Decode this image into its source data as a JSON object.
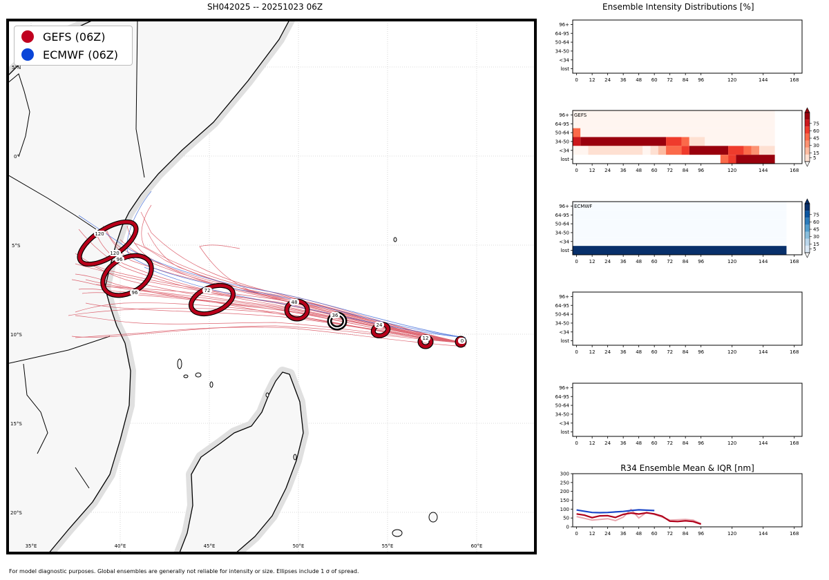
{
  "map": {
    "title": "SH042025 -- 20251023 06Z",
    "legend": [
      {
        "label": "GEFS (06Z)",
        "color": "#c0001f"
      },
      {
        "label": "ECMWF (06Z)",
        "color": "#0a45d8"
      }
    ],
    "lat_labels": [
      "5°N",
      "0°",
      "5°S",
      "10°S",
      "15°S",
      "20°S"
    ],
    "lon_labels": [
      "35°E",
      "40°E",
      "45°E",
      "50°E",
      "55°E",
      "60°E"
    ],
    "forecast_hours": [
      "0",
      "12",
      "24",
      "36",
      "48",
      "72",
      "96",
      "96",
      "120",
      "120"
    ],
    "footer": "For model diagnostic purposes. Global ensembles are generally not reliable for intensity or size. Ellipses include 1 σ of spread."
  },
  "chart_data": [
    {
      "type": "heatmap",
      "title": "Ensemble Intensity Distributions [%]",
      "panel_label": "",
      "rows": [
        "96+",
        "64-95",
        "50-64",
        "34-50",
        "<34",
        "lost"
      ],
      "x_ticks": [
        0,
        12,
        24,
        36,
        48,
        60,
        72,
        84,
        96,
        120,
        144,
        168
      ],
      "xlim": [
        -3,
        174
      ],
      "cells": []
    },
    {
      "type": "heatmap",
      "title": "",
      "panel_label": "GEFS",
      "rows": [
        "96+",
        "64-95",
        "50-64",
        "34-50",
        "<34",
        "lost"
      ],
      "x_ticks": [
        0,
        12,
        24,
        36,
        48,
        60,
        72,
        84,
        96,
        120,
        144,
        168
      ],
      "xlim": [
        -3,
        174
      ],
      "colorbar": {
        "colors": [
          "#fee0d2",
          "#fcbba1",
          "#fc9272",
          "#fb6a4a",
          "#ef3b2c",
          "#cb181d",
          "#99000d"
        ],
        "ticks": [
          5,
          15,
          30,
          45,
          60,
          75
        ]
      },
      "cells": [
        {
          "row": "96+",
          "x0": -3,
          "x1": 153,
          "value": 2
        },
        {
          "row": "64-95",
          "x0": -3,
          "x1": 153,
          "value": 2
        },
        {
          "row": "50-64",
          "x0": -3,
          "x1": 3,
          "value": 45
        },
        {
          "row": "50-64",
          "x0": 3,
          "x1": 153,
          "value": 2
        },
        {
          "row": "34-50",
          "x0": -3,
          "x1": 3,
          "value": 75
        },
        {
          "row": "34-50",
          "x0": 3,
          "x1": 69,
          "value": 95
        },
        {
          "row": "34-50",
          "x0": 69,
          "x1": 81,
          "value": 65
        },
        {
          "row": "34-50",
          "x0": 81,
          "x1": 87,
          "value": 45
        },
        {
          "row": "34-50",
          "x0": 87,
          "x1": 99,
          "value": 12
        },
        {
          "row": "34-50",
          "x0": 99,
          "x1": 153,
          "value": 2
        },
        {
          "row": "<34",
          "x0": -3,
          "x1": 9,
          "value": 2
        },
        {
          "row": "<34",
          "x0": 9,
          "x1": 51,
          "value": 12
        },
        {
          "row": "<34",
          "x0": 51,
          "x1": 57,
          "value": 2
        },
        {
          "row": "<34",
          "x0": 57,
          "x1": 63,
          "value": 12
        },
        {
          "row": "<34",
          "x0": 63,
          "x1": 69,
          "value": 20
        },
        {
          "row": "<34",
          "x0": 69,
          "x1": 81,
          "value": 45
        },
        {
          "row": "<34",
          "x0": 81,
          "x1": 87,
          "value": 65
        },
        {
          "row": "<34",
          "x0": 87,
          "x1": 117,
          "value": 95
        },
        {
          "row": "<34",
          "x0": 117,
          "x1": 129,
          "value": 65
        },
        {
          "row": "<34",
          "x0": 129,
          "x1": 135,
          "value": 45
        },
        {
          "row": "<34",
          "x0": 135,
          "x1": 141,
          "value": 30
        },
        {
          "row": "<34",
          "x0": 141,
          "x1": 153,
          "value": 12
        },
        {
          "row": "lost",
          "x0": 111,
          "x1": 117,
          "value": 45
        },
        {
          "row": "lost",
          "x0": 117,
          "x1": 123,
          "value": 65
        },
        {
          "row": "lost",
          "x0": 123,
          "x1": 153,
          "value": 95
        }
      ]
    },
    {
      "type": "heatmap",
      "title": "",
      "panel_label": "ECMWF",
      "rows": [
        "96+",
        "64-95",
        "50-64",
        "34-50",
        "<34",
        "lost"
      ],
      "x_ticks": [
        0,
        12,
        24,
        36,
        48,
        60,
        72,
        84,
        96,
        120,
        144,
        168
      ],
      "xlim": [
        -3,
        174
      ],
      "colorbar": {
        "colors": [
          "#dbe9f6",
          "#bad6eb",
          "#89bedc",
          "#539ecd",
          "#2b7bba",
          "#0b559f",
          "#08306b"
        ],
        "ticks": [
          5,
          15,
          30,
          45,
          60,
          75
        ]
      },
      "cells": [
        {
          "row": "96+",
          "x0": -3,
          "x1": 162,
          "value": 2
        },
        {
          "row": "64-95",
          "x0": -3,
          "x1": 162,
          "value": 2
        },
        {
          "row": "50-64",
          "x0": -3,
          "x1": 162,
          "value": 2
        },
        {
          "row": "34-50",
          "x0": -3,
          "x1": 162,
          "value": 2
        },
        {
          "row": "<34",
          "x0": -3,
          "x1": 162,
          "value": 2
        },
        {
          "row": "lost",
          "x0": -3,
          "x1": 162,
          "value": 100
        }
      ]
    },
    {
      "type": "heatmap",
      "title": "",
      "panel_label": "",
      "rows": [
        "96+",
        "64-95",
        "50-64",
        "34-50",
        "<34",
        "lost"
      ],
      "x_ticks": [
        0,
        12,
        24,
        36,
        48,
        60,
        72,
        84,
        96,
        120,
        144,
        168
      ],
      "xlim": [
        -3,
        174
      ],
      "cells": []
    },
    {
      "type": "heatmap",
      "title": "",
      "panel_label": "",
      "rows": [
        "96+",
        "64-95",
        "50-64",
        "34-50",
        "<34",
        "lost"
      ],
      "x_ticks": [
        0,
        12,
        24,
        36,
        48,
        60,
        72,
        84,
        96,
        120,
        144,
        168
      ],
      "xlim": [
        -3,
        174
      ],
      "cells": []
    },
    {
      "type": "line",
      "title": "R34 Ensemble Mean & IQR [nm]",
      "x_ticks": [
        0,
        12,
        24,
        36,
        48,
        60,
        72,
        84,
        96,
        120,
        144,
        168
      ],
      "y_ticks": [
        0,
        50,
        100,
        150,
        200,
        250,
        300
      ],
      "xlim": [
        -3,
        174
      ],
      "ylim": [
        0,
        300
      ],
      "series": [
        {
          "name": "GEFS IQR",
          "color": "#e8a5ad",
          "x": [
            0,
            6,
            12,
            18,
            24,
            30,
            36,
            42,
            48,
            54,
            60,
            66,
            72,
            78,
            84,
            90,
            96
          ],
          "values": [
            58,
            48,
            38,
            42,
            46,
            35,
            55,
            98,
            50,
            82,
            70,
            55,
            38,
            40,
            42,
            38,
            18
          ]
        },
        {
          "name": "GEFS mean",
          "color": "#b0001a",
          "x": [
            0,
            6,
            12,
            18,
            24,
            30,
            36,
            42,
            48,
            54,
            60,
            66,
            72,
            78,
            84,
            90,
            96
          ],
          "values": [
            73,
            66,
            52,
            62,
            63,
            53,
            70,
            78,
            72,
            79,
            73,
            60,
            32,
            30,
            34,
            30,
            15
          ]
        },
        {
          "name": "ECMWF mean",
          "color": "#1a46c8",
          "x": [
            0,
            6,
            12,
            18,
            24,
            30,
            36,
            42,
            48,
            54,
            60
          ],
          "values": [
            95,
            88,
            81,
            80,
            81,
            84,
            87,
            92,
            96,
            94,
            92
          ]
        }
      ]
    }
  ]
}
